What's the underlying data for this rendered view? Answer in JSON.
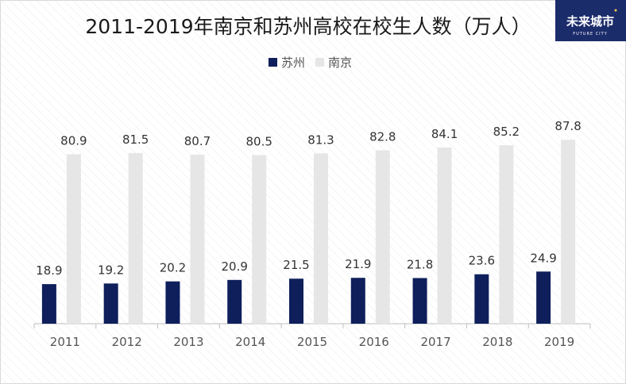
{
  "page": {
    "title": "2011-2019年南京和苏州高校在校生人数（万人）"
  },
  "logo": {
    "text": "未来城市",
    "subtext": "FUTURE CITY",
    "color": "#1b2c6b"
  },
  "chart_data": {
    "type": "bar",
    "title": "2011-2019年南京和苏州高校在校生人数（万人）",
    "xlabel": "",
    "ylabel": "",
    "ylim": [
      0,
      100
    ],
    "grid": false,
    "legend_position": "top",
    "categories": [
      "2011",
      "2012",
      "2013",
      "2014",
      "2015",
      "2016",
      "2017",
      "2018",
      "2019"
    ],
    "series": [
      {
        "name": "苏州",
        "color": "#0e1f5b",
        "values": [
          18.9,
          19.2,
          20.2,
          20.9,
          21.5,
          21.9,
          21.8,
          23.6,
          24.9
        ],
        "labels": [
          "18.9",
          "19.2",
          "20.2",
          "20.9",
          "21.5",
          "21.9",
          "21.8",
          "23.6",
          "24.9"
        ]
      },
      {
        "name": "南京",
        "color": "#e6e6e6",
        "values": [
          80.9,
          81.5,
          80.7,
          80.5,
          81.3,
          82.8,
          84.1,
          85.2,
          87.8
        ],
        "labels": [
          "80.9",
          "81.5",
          "80.7",
          "80.5",
          "81.3",
          "82.8",
          "84.1",
          "85.2",
          "87.8"
        ]
      }
    ]
  }
}
